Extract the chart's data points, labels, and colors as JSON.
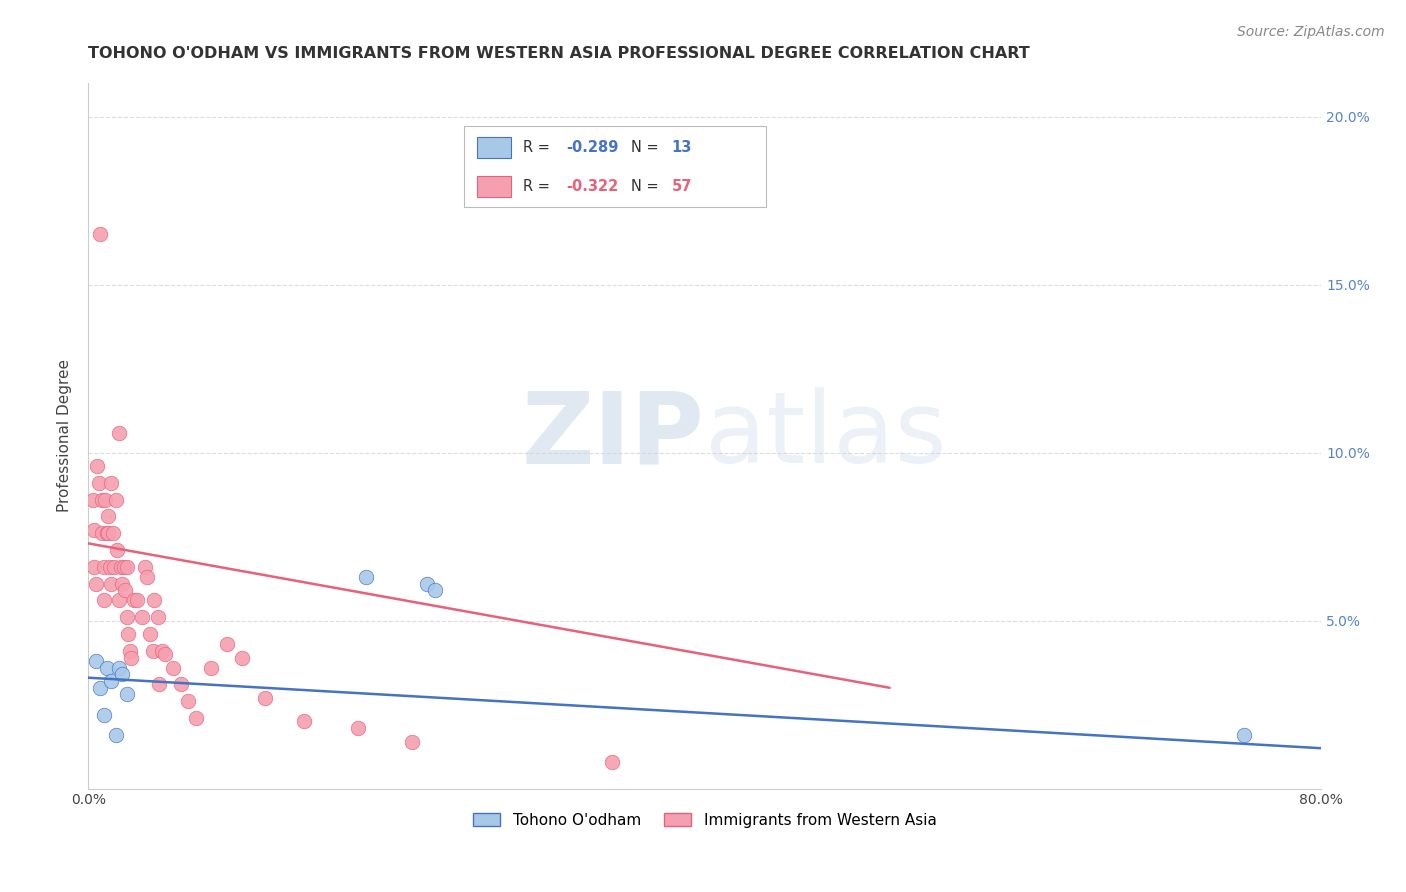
{
  "title": "TOHONO O'ODHAM VS IMMIGRANTS FROM WESTERN ASIA PROFESSIONAL DEGREE CORRELATION CHART",
  "source": "Source: ZipAtlas.com",
  "ylabel": "Professional Degree",
  "xlim": [
    0.0,
    0.8
  ],
  "ylim": [
    0.0,
    0.21
  ],
  "xticks": [
    0.0,
    0.1,
    0.2,
    0.3,
    0.4,
    0.5,
    0.6,
    0.7,
    0.8
  ],
  "yticks_right": [
    0.0,
    0.05,
    0.1,
    0.15,
    0.2
  ],
  "ytick_right_labels": [
    "",
    "5.0%",
    "10.0%",
    "15.0%",
    "20.0%"
  ],
  "legend_series": [
    {
      "label": "Tohono O'odham",
      "color": "#a8c8e8",
      "R": "-0.289",
      "N": "13"
    },
    {
      "label": "Immigrants from Western Asia",
      "color": "#f4a0b0",
      "R": "-0.322",
      "N": "57"
    }
  ],
  "blue_scatter_x": [
    0.005,
    0.008,
    0.01,
    0.012,
    0.015,
    0.018,
    0.02,
    0.022,
    0.025,
    0.18,
    0.22,
    0.225,
    0.75
  ],
  "blue_scatter_y": [
    0.038,
    0.03,
    0.022,
    0.036,
    0.032,
    0.016,
    0.036,
    0.034,
    0.028,
    0.063,
    0.061,
    0.059,
    0.016
  ],
  "pink_scatter_x": [
    0.003,
    0.004,
    0.004,
    0.005,
    0.006,
    0.007,
    0.008,
    0.009,
    0.009,
    0.01,
    0.01,
    0.011,
    0.012,
    0.013,
    0.013,
    0.014,
    0.015,
    0.015,
    0.016,
    0.017,
    0.018,
    0.019,
    0.02,
    0.02,
    0.021,
    0.022,
    0.023,
    0.024,
    0.025,
    0.025,
    0.026,
    0.027,
    0.028,
    0.03,
    0.032,
    0.035,
    0.037,
    0.038,
    0.04,
    0.042,
    0.043,
    0.045,
    0.046,
    0.048,
    0.05,
    0.055,
    0.06,
    0.065,
    0.07,
    0.08,
    0.09,
    0.1,
    0.115,
    0.14,
    0.175,
    0.21,
    0.34
  ],
  "pink_scatter_y": [
    0.086,
    0.077,
    0.066,
    0.061,
    0.096,
    0.091,
    0.165,
    0.086,
    0.076,
    0.066,
    0.056,
    0.086,
    0.076,
    0.081,
    0.076,
    0.066,
    0.061,
    0.091,
    0.076,
    0.066,
    0.086,
    0.071,
    0.056,
    0.106,
    0.066,
    0.061,
    0.066,
    0.059,
    0.066,
    0.051,
    0.046,
    0.041,
    0.039,
    0.056,
    0.056,
    0.051,
    0.066,
    0.063,
    0.046,
    0.041,
    0.056,
    0.051,
    0.031,
    0.041,
    0.04,
    0.036,
    0.031,
    0.026,
    0.021,
    0.036,
    0.043,
    0.039,
    0.027,
    0.02,
    0.018,
    0.014,
    0.008
  ],
  "blue_line_x": [
    0.0,
    0.8
  ],
  "blue_line_y": [
    0.033,
    0.012
  ],
  "pink_line_x": [
    0.0,
    0.52
  ],
  "pink_line_y": [
    0.073,
    0.03
  ],
  "blue_color": "#4472c4",
  "pink_color": "#e8607a",
  "scatter_blue_color": "#a8c8e8",
  "scatter_pink_color": "#f4a0b0",
  "watermark_zip": "ZIP",
  "watermark_atlas": "atlas",
  "background_color": "#ffffff",
  "grid_color": "#dddddd",
  "title_color": "#333333",
  "right_axis_color": "#5585c8",
  "title_fontsize": 11.5,
  "source_fontsize": 10
}
